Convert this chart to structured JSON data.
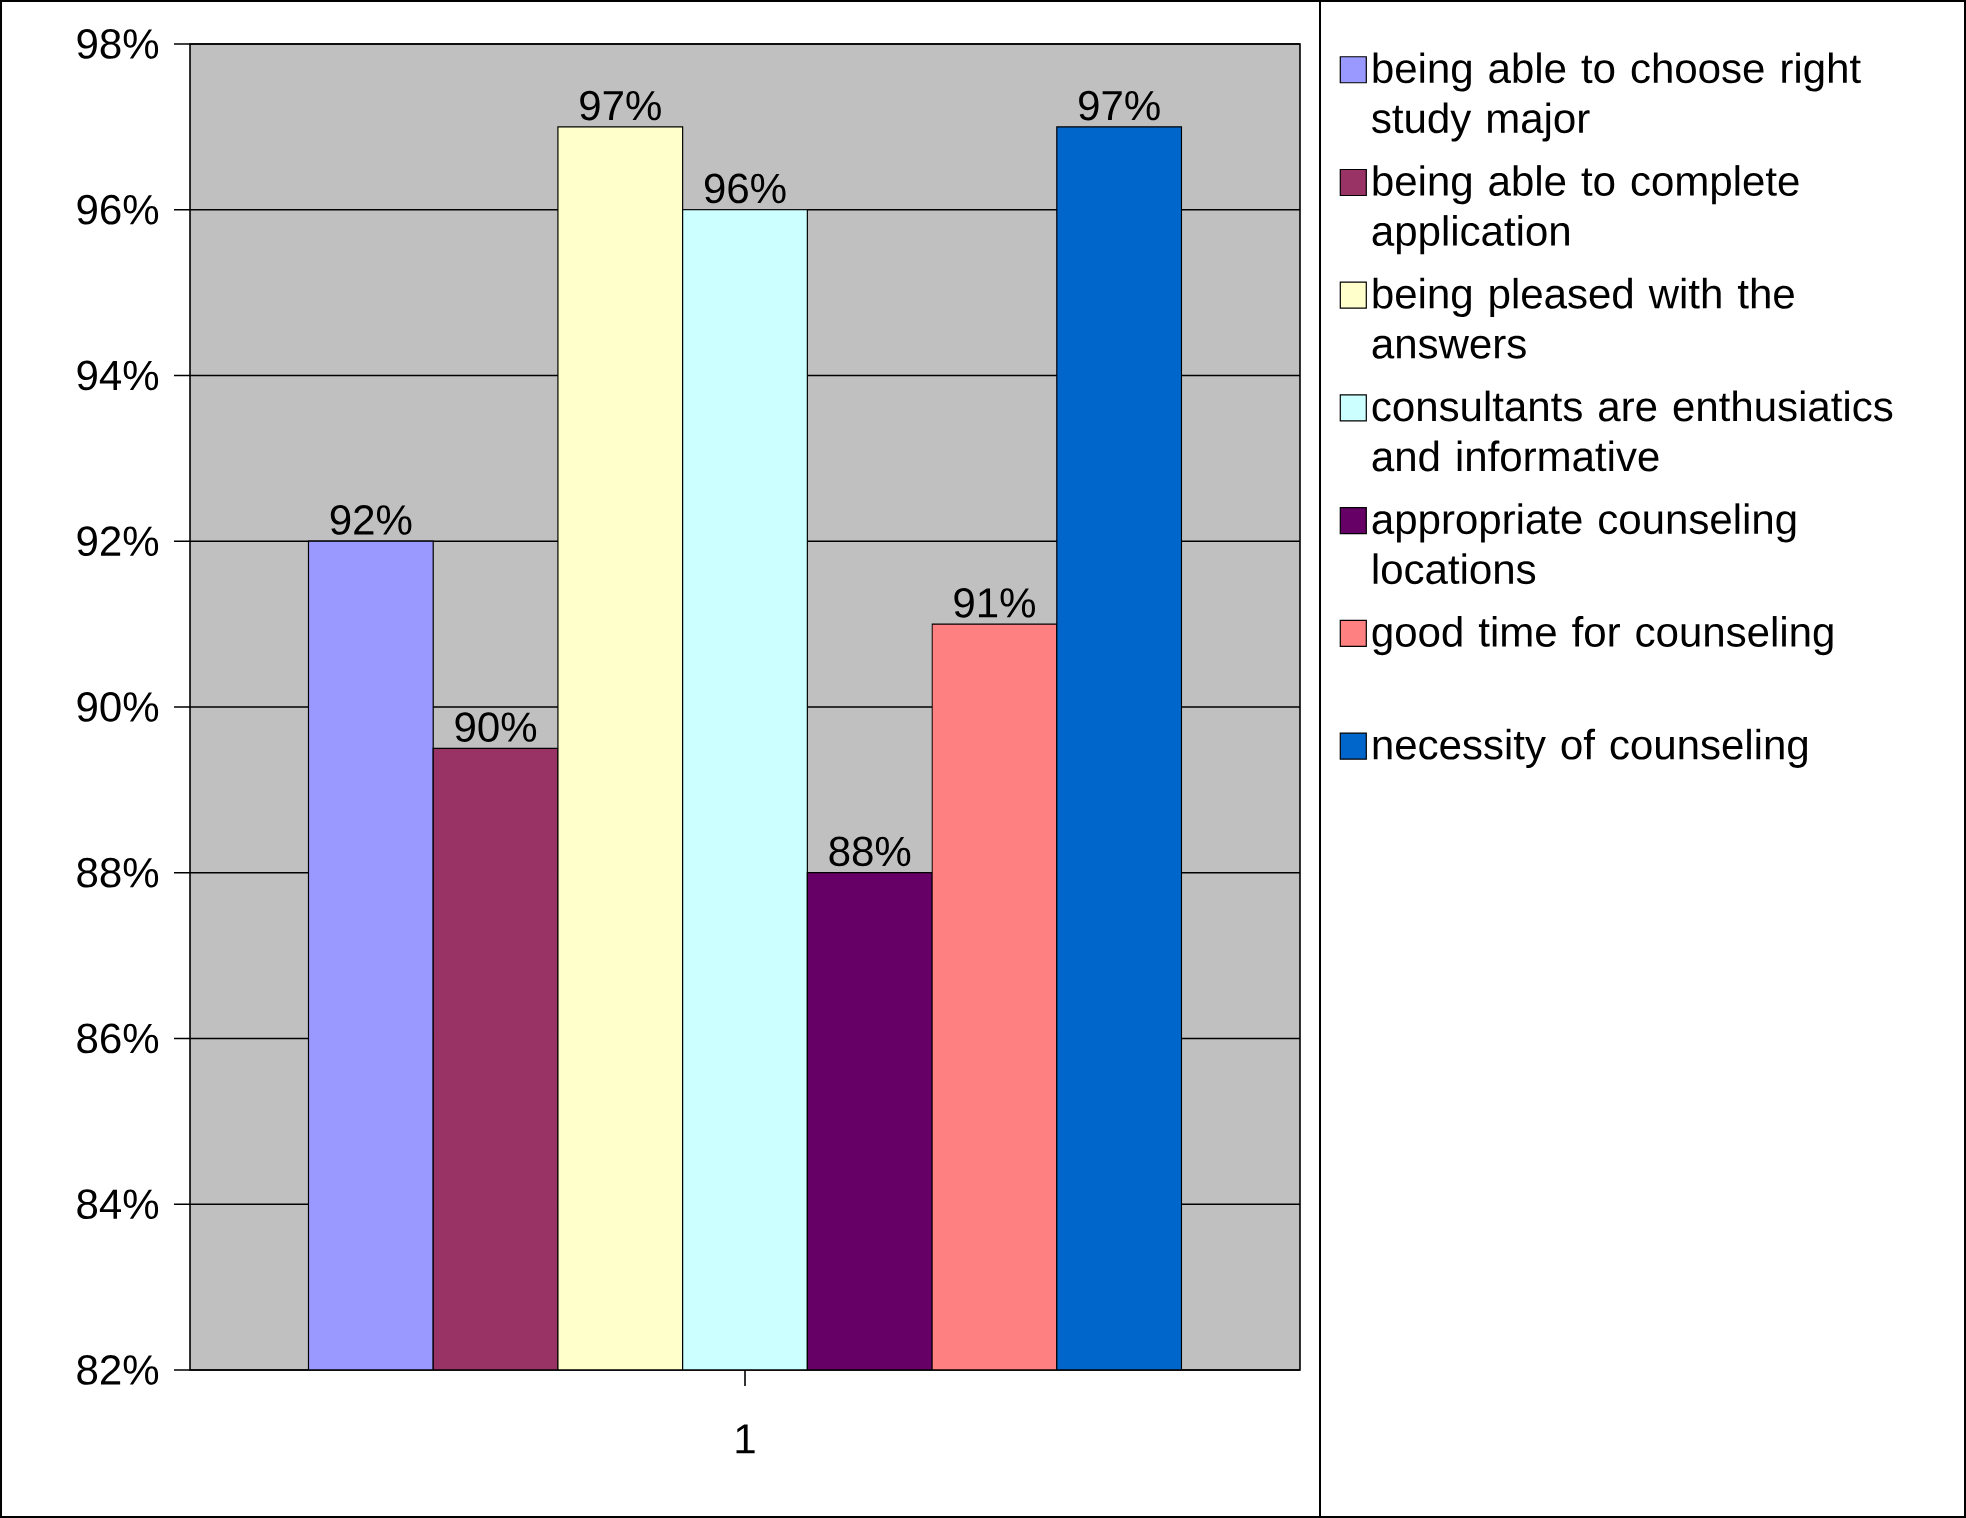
{
  "chart_data": {
    "type": "bar",
    "categories": [
      "1"
    ],
    "series": [
      {
        "name": "being able to choose right study major",
        "color": "#9999ff",
        "values": [
          92
        ],
        "value_labels": [
          "92%"
        ]
      },
      {
        "name": "being able to complete application",
        "color": "#993366",
        "values": [
          89.5
        ],
        "value_labels": [
          "90%"
        ]
      },
      {
        "name": "being pleased with the answers",
        "color": "#ffffcc",
        "values": [
          97
        ],
        "value_labels": [
          "97%"
        ]
      },
      {
        "name": "consultants are enthusiatics and informative",
        "color": "#ccffff",
        "values": [
          96
        ],
        "value_labels": [
          "96%"
        ]
      },
      {
        "name": "appropriate counseling locations",
        "color": "#660066",
        "values": [
          88
        ],
        "value_labels": [
          "88%"
        ]
      },
      {
        "name": "good time for counseling",
        "color": "#ff8080",
        "values": [
          91
        ],
        "value_labels": [
          "91%"
        ]
      },
      {
        "name": "necessity of counseling",
        "color": "#0066cc",
        "values": [
          97
        ],
        "value_labels": [
          "97%"
        ]
      }
    ],
    "ylim": [
      82,
      98
    ],
    "yticks": [
      {
        "value": 82,
        "label": "82%"
      },
      {
        "value": 84,
        "label": "84%"
      },
      {
        "value": 86,
        "label": "86%"
      },
      {
        "value": 88,
        "label": "88%"
      },
      {
        "value": 90,
        "label": "90%"
      },
      {
        "value": 92,
        "label": "92%"
      },
      {
        "value": 94,
        "label": "94%"
      },
      {
        "value": 96,
        "label": "96%"
      },
      {
        "value": 98,
        "label": "98%"
      }
    ],
    "grid": "y",
    "legend": "right"
  }
}
